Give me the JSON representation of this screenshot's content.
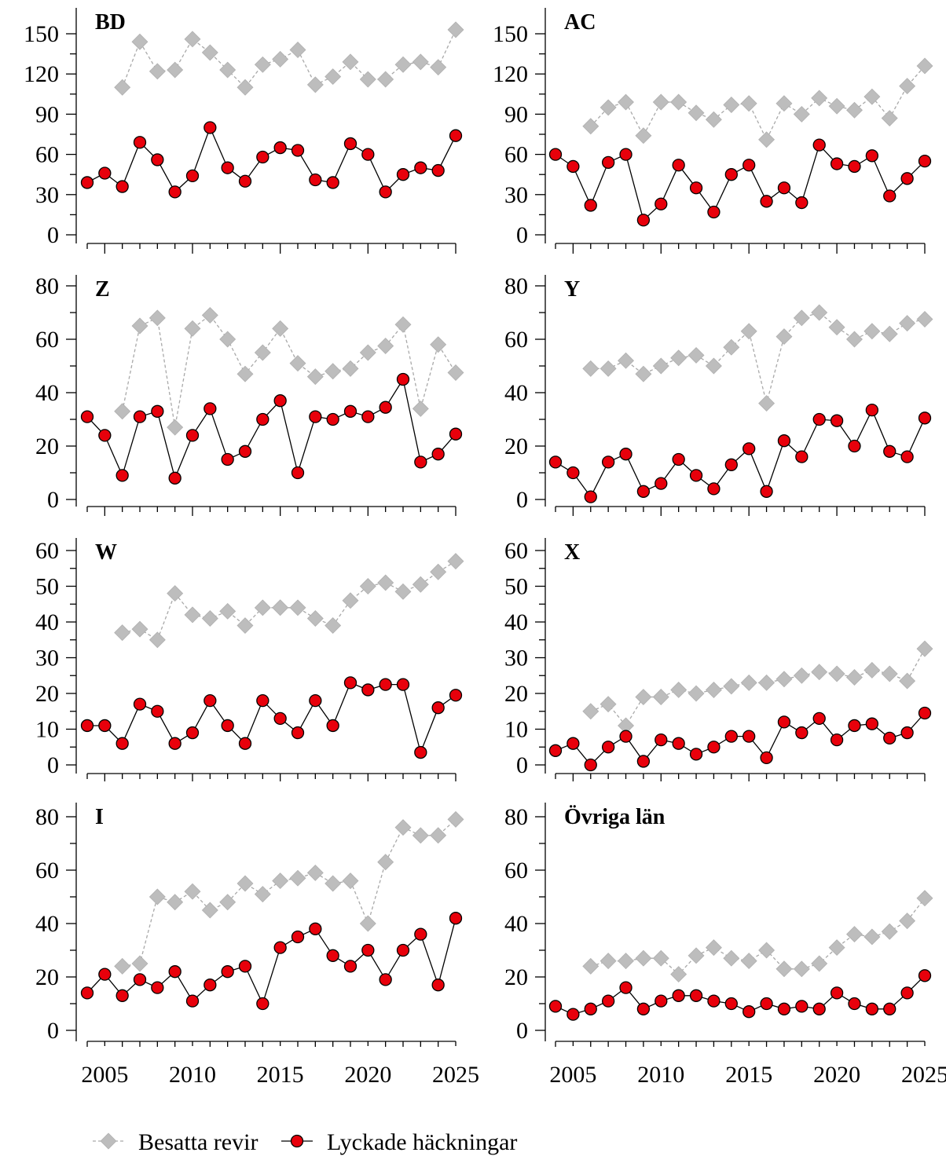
{
  "legend": {
    "occupied_label": "Besatta revir",
    "successful_label": "Lyckade häckningar"
  },
  "colors": {
    "occupied": "#bdbdbd",
    "successful": "#e8000b",
    "successful_line": "#000000"
  },
  "chart_data": [
    {
      "type": "line",
      "title": "BD",
      "x": [
        2004,
        2005,
        2006,
        2007,
        2008,
        2009,
        2010,
        2011,
        2012,
        2013,
        2014,
        2015,
        2016,
        2017,
        2018,
        2019,
        2020,
        2021,
        2022,
        2023,
        2024,
        2025
      ],
      "series": [
        {
          "name": "Besatta revir",
          "values": [
            null,
            null,
            110,
            144,
            122,
            123,
            146,
            136,
            123,
            110,
            127,
            131,
            138,
            112,
            118,
            129,
            116,
            116,
            127,
            129,
            125,
            153
          ]
        },
        {
          "name": "Lyckade häckningar",
          "values": [
            39,
            46,
            36,
            69,
            56,
            32,
            44,
            80,
            50,
            40,
            58,
            65,
            63,
            41,
            39,
            68,
            60,
            32,
            45,
            50,
            48,
            74
          ]
        }
      ],
      "ylim": [
        0,
        150
      ],
      "yticks": [
        0,
        30,
        60,
        90,
        120,
        150
      ],
      "xticks": [
        2005,
        2010,
        2015,
        2020,
        2025
      ]
    },
    {
      "type": "line",
      "title": "AC",
      "x": [
        2004,
        2005,
        2006,
        2007,
        2008,
        2009,
        2010,
        2011,
        2012,
        2013,
        2014,
        2015,
        2016,
        2017,
        2018,
        2019,
        2020,
        2021,
        2022,
        2023,
        2024,
        2025
      ],
      "series": [
        {
          "name": "Besatta revir",
          "values": [
            null,
            null,
            81,
            95,
            99,
            74,
            99,
            99,
            91,
            86,
            97,
            98,
            71,
            98,
            90,
            102,
            96,
            93,
            103,
            87,
            111,
            126
          ]
        },
        {
          "name": "Lyckade häckningar",
          "values": [
            60,
            51,
            22,
            54,
            60,
            11,
            23,
            52,
            35,
            17,
            45,
            52,
            25,
            35,
            24,
            67,
            53,
            51,
            59,
            29,
            42,
            55
          ]
        }
      ],
      "ylim": [
        0,
        150
      ],
      "yticks": [
        0,
        30,
        60,
        90,
        120,
        150
      ],
      "xticks": [
        2005,
        2010,
        2015,
        2020,
        2025
      ]
    },
    {
      "type": "line",
      "title": "Z",
      "x": [
        2004,
        2005,
        2006,
        2007,
        2008,
        2009,
        2010,
        2011,
        2012,
        2013,
        2014,
        2015,
        2016,
        2017,
        2018,
        2019,
        2020,
        2021,
        2022,
        2023,
        2024,
        2025
      ],
      "series": [
        {
          "name": "Besatta revir",
          "values": [
            null,
            null,
            33,
            65,
            68,
            27,
            64,
            69,
            60,
            47,
            55,
            64,
            51,
            46,
            48,
            49,
            55,
            57.5,
            65.5,
            34,
            58,
            47.5
          ]
        },
        {
          "name": "Lyckade häckningar",
          "values": [
            31,
            24,
            9,
            31,
            33,
            8,
            24,
            34,
            15,
            18,
            30,
            37,
            10,
            31,
            30,
            33,
            31,
            34.5,
            45,
            14,
            17,
            24.5
          ]
        }
      ],
      "ylim": [
        0,
        80
      ],
      "yticks": [
        0,
        20,
        40,
        60,
        80
      ],
      "xticks": [
        2005,
        2010,
        2015,
        2020,
        2025
      ]
    },
    {
      "type": "line",
      "title": "Y",
      "x": [
        2004,
        2005,
        2006,
        2007,
        2008,
        2009,
        2010,
        2011,
        2012,
        2013,
        2014,
        2015,
        2016,
        2017,
        2018,
        2019,
        2020,
        2021,
        2022,
        2023,
        2024,
        2025
      ],
      "series": [
        {
          "name": "Besatta revir",
          "values": [
            null,
            null,
            49,
            49,
            52,
            47,
            50,
            53,
            54,
            50,
            57,
            63,
            36,
            61,
            68,
            70,
            64.5,
            60,
            63,
            62,
            66,
            67.5
          ]
        },
        {
          "name": "Lyckade häckningar",
          "values": [
            14,
            10,
            1,
            14,
            17,
            3,
            6,
            15,
            9,
            4,
            13,
            19,
            3,
            22,
            16,
            30,
            29.5,
            20,
            33.5,
            18,
            16,
            30.5
          ]
        }
      ],
      "ylim": [
        0,
        80
      ],
      "yticks": [
        0,
        20,
        40,
        60,
        80
      ],
      "xticks": [
        2005,
        2010,
        2015,
        2020,
        2025
      ]
    },
    {
      "type": "line",
      "title": "W",
      "x": [
        2004,
        2005,
        2006,
        2007,
        2008,
        2009,
        2010,
        2011,
        2012,
        2013,
        2014,
        2015,
        2016,
        2017,
        2018,
        2019,
        2020,
        2021,
        2022,
        2023,
        2024,
        2025
      ],
      "series": [
        {
          "name": "Besatta revir",
          "values": [
            null,
            null,
            37,
            38,
            35,
            48,
            42,
            41,
            43,
            39,
            44,
            44,
            44,
            41,
            39,
            46,
            50,
            51,
            48.5,
            50.5,
            54,
            57
          ]
        },
        {
          "name": "Lyckade häckningar",
          "values": [
            11,
            11,
            6,
            17,
            15,
            6,
            9,
            18,
            11,
            6,
            18,
            13,
            9,
            18,
            11,
            23,
            21,
            22.5,
            22.5,
            3.5,
            16,
            19.5
          ]
        }
      ],
      "ylim": [
        0,
        60
      ],
      "yticks": [
        0,
        10,
        20,
        30,
        40,
        50,
        60
      ],
      "xticks": [
        2005,
        2010,
        2015,
        2020,
        2025
      ]
    },
    {
      "type": "line",
      "title": "X",
      "x": [
        2004,
        2005,
        2006,
        2007,
        2008,
        2009,
        2010,
        2011,
        2012,
        2013,
        2014,
        2015,
        2016,
        2017,
        2018,
        2019,
        2020,
        2021,
        2022,
        2023,
        2024,
        2025
      ],
      "series": [
        {
          "name": "Besatta revir",
          "values": [
            null,
            null,
            15,
            17,
            11,
            19,
            19,
            21,
            20,
            21,
            22,
            23,
            23,
            24,
            25,
            26,
            25.5,
            24.5,
            26.5,
            25.5,
            23.5,
            32.5
          ]
        },
        {
          "name": "Lyckade häckningar",
          "values": [
            4,
            6,
            0,
            5,
            8,
            1,
            7,
            6,
            3,
            5,
            8,
            8,
            2,
            12,
            9,
            13,
            7,
            11,
            11.5,
            7.5,
            9,
            14.5
          ]
        }
      ],
      "ylim": [
        0,
        60
      ],
      "yticks": [
        0,
        10,
        20,
        30,
        40,
        50,
        60
      ],
      "xticks": [
        2005,
        2010,
        2015,
        2020,
        2025
      ]
    },
    {
      "type": "line",
      "title": "I",
      "x": [
        2004,
        2005,
        2006,
        2007,
        2008,
        2009,
        2010,
        2011,
        2012,
        2013,
        2014,
        2015,
        2016,
        2017,
        2018,
        2019,
        2020,
        2021,
        2022,
        2023,
        2024,
        2025
      ],
      "series": [
        {
          "name": "Besatta revir",
          "values": [
            null,
            null,
            24,
            25,
            50,
            48,
            52,
            45,
            48,
            55,
            51,
            56,
            57,
            59,
            55,
            56,
            40,
            63,
            76,
            73,
            73,
            79
          ]
        },
        {
          "name": "Lyckade häckningar",
          "values": [
            14,
            21,
            13,
            19,
            16,
            22,
            11,
            17,
            22,
            24,
            10,
            31,
            35,
            38,
            28,
            24,
            30,
            19,
            30,
            36,
            17,
            42
          ]
        }
      ],
      "ylim": [
        0,
        80
      ],
      "yticks": [
        0,
        20,
        40,
        60,
        80
      ],
      "xticks": [
        2005,
        2010,
        2015,
        2020,
        2025
      ]
    },
    {
      "type": "line",
      "title": "Övriga län",
      "x": [
        2004,
        2005,
        2006,
        2007,
        2008,
        2009,
        2010,
        2011,
        2012,
        2013,
        2014,
        2015,
        2016,
        2017,
        2018,
        2019,
        2020,
        2021,
        2022,
        2023,
        2024,
        2025
      ],
      "series": [
        {
          "name": "Besatta revir",
          "values": [
            null,
            null,
            24,
            26,
            26,
            27,
            27,
            21,
            28,
            31,
            27,
            26,
            30,
            23,
            23,
            25,
            31,
            36,
            35,
            37,
            41,
            49.5
          ]
        },
        {
          "name": "Lyckade häckningar",
          "values": [
            9,
            6,
            8,
            11,
            16,
            8,
            11,
            13,
            13,
            11,
            10,
            7,
            10,
            8,
            9,
            8,
            14,
            10,
            8,
            8,
            14,
            20.5
          ]
        }
      ],
      "ylim": [
        0,
        80
      ],
      "yticks": [
        0,
        20,
        40,
        60,
        80
      ],
      "xticks": [
        2005,
        2010,
        2015,
        2020,
        2025
      ]
    }
  ]
}
